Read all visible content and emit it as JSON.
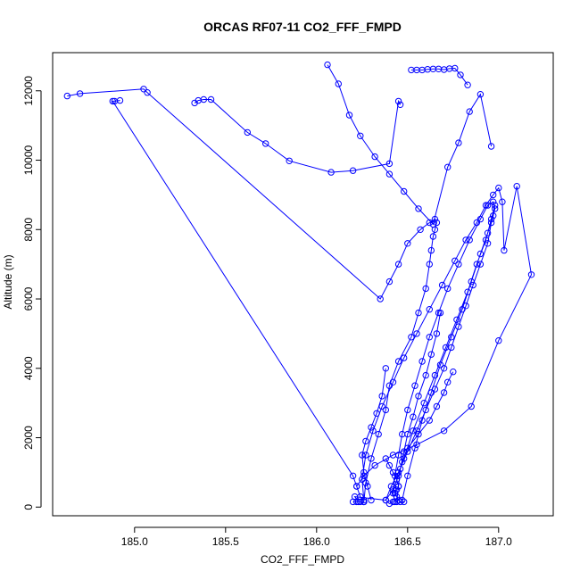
{
  "chart_data": {
    "type": "scatter",
    "title": "ORCAS RF07-11 CO2_FFF_FMPD",
    "xlabel": "CO2_FFF_FMPD",
    "ylabel": "Altitude (m)",
    "xlim": [
      184.55,
      187.3
    ],
    "ylim": [
      -250,
      13100
    ],
    "xticks": [
      185.0,
      185.5,
      186.0,
      186.5,
      187.0
    ],
    "xtick_labels": [
      "185.0",
      "185.5",
      "186.0",
      "186.5",
      "187.0"
    ],
    "yticks": [
      0,
      2000,
      4000,
      6000,
      8000,
      10000,
      12000
    ],
    "ytick_labels": [
      "0",
      "2000",
      "4000",
      "6000",
      "8000",
      "10000",
      "12000"
    ],
    "grid": false,
    "marker": "open-circle",
    "color": "#0000ff",
    "series": [
      {
        "x": [
          186.26,
          186.27,
          186.3,
          186.34,
          186.38,
          186.4,
          186.45,
          186.52,
          186.56,
          186.6,
          186.62,
          186.63,
          186.64,
          186.65,
          186.66,
          186.65,
          186.62,
          186.57,
          186.5,
          186.45,
          186.4,
          186.35,
          185.07,
          185.05,
          184.7,
          184.63
        ],
        "y": [
          150,
          700,
          1400,
          2100,
          2800,
          3500,
          4200,
          4900,
          5600,
          6300,
          7000,
          7400,
          7800,
          8000,
          8200,
          8300,
          8200,
          8000,
          7600,
          7000,
          6500,
          6000,
          11950,
          12050,
          11920,
          11850
        ]
      },
      {
        "x": [
          186.43,
          186.42,
          186.43,
          186.45,
          186.47,
          186.5,
          186.54,
          186.58,
          186.62,
          186.67,
          186.72,
          186.78,
          186.84,
          186.9,
          186.94,
          186.97,
          186.98,
          186.96,
          186.94,
          186.9,
          186.86,
          186.82,
          186.78,
          186.74,
          186.7,
          186.65,
          186.6,
          186.55,
          186.5,
          186.45,
          186.41,
          186.38,
          186.42,
          186.45,
          186.47,
          186.5,
          186.56,
          186.62,
          186.66,
          186.7,
          186.72,
          186.75
        ],
        "y": [
          150,
          400,
          900,
          1500,
          2100,
          2800,
          3500,
          4200,
          4900,
          5600,
          6300,
          7000,
          7700,
          8300,
          8700,
          8800,
          8600,
          8200,
          7600,
          7000,
          6400,
          5800,
          5200,
          4600,
          4000,
          3400,
          2800,
          2200,
          1600,
          1000,
          600,
          200,
          500,
          900,
          1300,
          1700,
          2100,
          2500,
          2900,
          3300,
          3600,
          3900
        ]
      },
      {
        "x": [
          186.26,
          186.25,
          186.27,
          186.31,
          186.36,
          186.42,
          186.48,
          186.55,
          186.62,
          186.69,
          186.76,
          186.82,
          186.88,
          186.93,
          186.97,
          187.0,
          187.02,
          187.03,
          187.1,
          187.18,
          187.0,
          186.85,
          186.7,
          186.55,
          186.42,
          186.32,
          186.26,
          186.22
        ],
        "y": [
          200,
          800,
          1500,
          2200,
          2900,
          3600,
          4300,
          5000,
          5700,
          6400,
          7100,
          7700,
          8200,
          8700,
          9000,
          9200,
          8800,
          7400,
          9250,
          6700,
          4800,
          2900,
          2200,
          1800,
          1500,
          1200,
          900,
          600
        ]
      },
      {
        "x": [
          186.47,
          186.5,
          186.54,
          186.58,
          186.63,
          186.68,
          186.74,
          186.8,
          186.85,
          186.9,
          186.94,
          186.97,
          186.98,
          186.96,
          186.93,
          186.88,
          186.83,
          186.77,
          186.71,
          186.65,
          186.59,
          186.53,
          186.48
        ],
        "y": [
          200,
          900,
          1700,
          2500,
          3300,
          4100,
          4900,
          5700,
          6500,
          7300,
          7900,
          8400,
          8700,
          8300,
          7700,
          7000,
          6200,
          5400,
          4600,
          3800,
          3000,
          2200,
          1400
        ]
      },
      {
        "x": [
          186.44,
          186.45,
          186.46,
          186.48,
          186.5,
          186.53,
          186.56,
          186.6,
          186.63,
          186.66,
          186.68
        ],
        "y": [
          150,
          600,
          1100,
          1600,
          2100,
          2600,
          3200,
          3800,
          4400,
          5000,
          5600
        ]
      },
      {
        "x": [
          186.3,
          186.28,
          186.26,
          186.25,
          186.27,
          186.3,
          186.33,
          186.36,
          186.38
        ],
        "y": [
          200,
          600,
          1000,
          1500,
          1900,
          2300,
          2700,
          3200,
          4000
        ]
      },
      {
        "x": [
          186.06,
          186.12,
          186.18,
          186.24,
          186.32,
          186.4,
          186.48,
          186.56,
          186.64,
          186.72,
          186.78,
          186.84,
          186.9,
          186.96
        ],
        "y": [
          12750,
          12200,
          11300,
          10700,
          10100,
          9600,
          9100,
          8600,
          8150,
          9800,
          10500,
          11400,
          11900,
          10400
        ]
      },
      {
        "x": [
          186.52,
          186.55,
          186.58,
          186.61,
          186.64,
          186.67,
          186.7,
          186.73,
          186.76,
          186.79,
          186.83
        ],
        "y": [
          12600,
          12600,
          12600,
          12620,
          12630,
          12630,
          12610,
          12640,
          12650,
          12460,
          12170
        ]
      },
      {
        "x": [
          185.33,
          185.35,
          185.38,
          185.42,
          185.62,
          185.72,
          185.85,
          186.08,
          186.2,
          186.4,
          186.45,
          186.46
        ],
        "y": [
          11650,
          11720,
          11750,
          11750,
          10800,
          10480,
          9980,
          9650,
          9700,
          9900,
          11700,
          11600
        ]
      },
      {
        "x": [
          184.89,
          184.92,
          184.88,
          186.2,
          186.22,
          186.24,
          186.26
        ],
        "y": [
          11700,
          11720,
          11700,
          900,
          600,
          300,
          150
        ]
      },
      {
        "x": [
          186.38,
          186.4,
          186.42,
          186.44,
          186.45,
          186.44,
          186.43,
          186.44,
          186.45,
          186.46,
          186.48
        ],
        "y": [
          1400,
          1200,
          1000,
          800,
          600,
          500,
          400,
          300,
          200,
          150,
          150
        ]
      },
      {
        "x": [
          186.2,
          186.22,
          186.24,
          186.26,
          186.23,
          186.21,
          186.38,
          186.4,
          186.42
        ],
        "y": [
          150,
          150,
          150,
          150,
          150,
          300,
          200,
          100,
          150
        ]
      }
    ]
  }
}
